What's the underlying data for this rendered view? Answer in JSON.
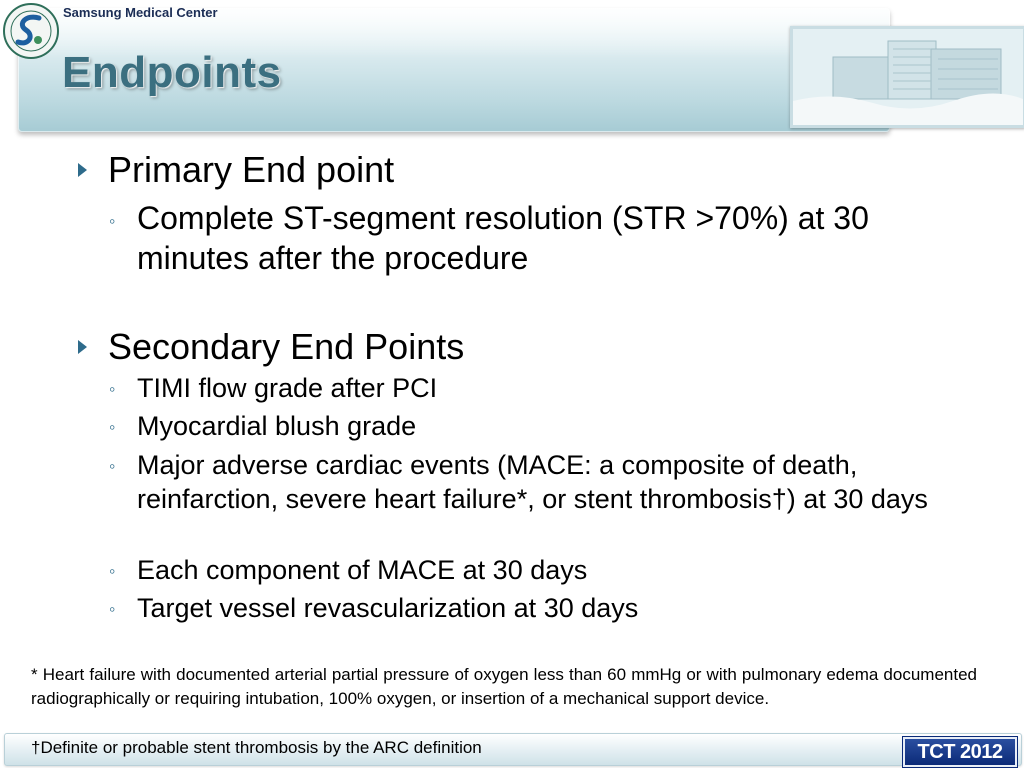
{
  "header": {
    "org_name": "Samsung Medical Center",
    "title": "Endpoints",
    "logo_icon": "university-seal-icon",
    "photo_icon": "hospital-building-photo"
  },
  "primary": {
    "heading": "Primary End point",
    "items": [
      "Complete ST-segment resolution (STR >70%) at 30 minutes after the procedure"
    ]
  },
  "secondary": {
    "heading": "Secondary End Points",
    "items": [
      "TIMI flow grade after PCI",
      "Myocardial blush grade",
      "Major adverse cardiac events (MACE: a composite of death, reinfarction, severe heart failure*, or stent thrombosis†) at 30 days",
      "Each component of MACE at 30 days",
      "Target vessel revascularization at 30 days"
    ]
  },
  "footnotes": {
    "heart_failure": "* Heart failure with documented arterial partial pressure of oxygen less than 60 mmHg or with pulmonary edema documented radiographically or requiring intubation, 100% oxygen, or insertion of a mechanical support device.",
    "stent_thrombosis": "†Definite or probable stent thrombosis by the ARC definition"
  },
  "badge": "TCT 2012",
  "colors": {
    "title": "#3b6f80",
    "bullet": "#2e6b8b",
    "badge_bg": "#0b2a78"
  }
}
